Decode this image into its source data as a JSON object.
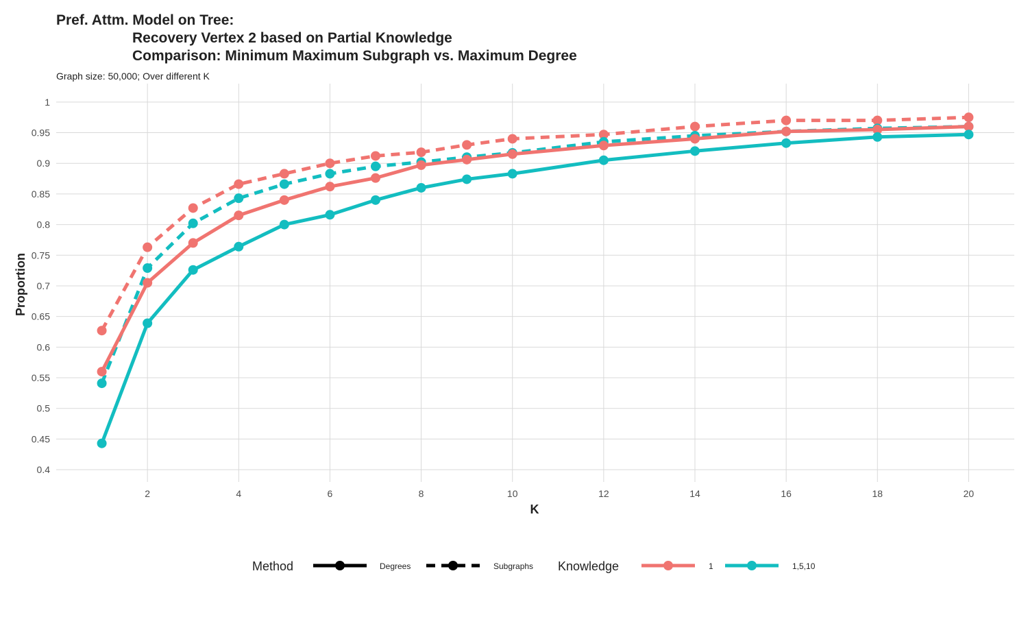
{
  "chart_data": {
    "type": "line",
    "title_lines": [
      "Pref. Attm. Model on Tree:",
      "Recovery Vertex 2 based on Partial Knowledge",
      "Comparison: Minimum Maximum Subgraph vs. Maximum Degree"
    ],
    "subtitle": "Graph size: 50,000; Over different K",
    "xlabel": "K",
    "ylabel": "Proportion",
    "xlim": [
      0,
      21
    ],
    "ylim": [
      0.38,
      1.03
    ],
    "x_ticks": [
      2,
      4,
      6,
      8,
      10,
      12,
      14,
      16,
      18,
      20
    ],
    "y_ticks": [
      0.4,
      0.45,
      0.5,
      0.55,
      0.6,
      0.65,
      0.7,
      0.75,
      0.8,
      0.85,
      0.9,
      0.95,
      1
    ],
    "y_tick_labels": [
      "0.4",
      "0.45",
      "0.5",
      "0.55",
      "0.6",
      "0.65",
      "0.7",
      "0.75",
      "0.8",
      "0.85",
      "0.9",
      "0.95",
      "1"
    ],
    "x": [
      1,
      2,
      3,
      4,
      5,
      6,
      7,
      8,
      9,
      10,
      12,
      14,
      16,
      18,
      20
    ],
    "grid": true,
    "legend_placement": "bottom",
    "colors": {
      "1": "#F07470",
      "1,5,10": "#13BDC0",
      "gridline": "#d9d9d9"
    },
    "series": [
      {
        "method": "Subgraphs",
        "knowledge": "1",
        "values": [
          0.627,
          0.763,
          0.827,
          0.866,
          0.883,
          0.9,
          0.912,
          0.918,
          0.93,
          0.94,
          0.947,
          0.96,
          0.97,
          0.97,
          0.975
        ]
      },
      {
        "method": "Subgraphs",
        "knowledge": "1,5,10",
        "values": [
          0.541,
          0.729,
          0.802,
          0.843,
          0.866,
          0.883,
          0.895,
          0.902,
          0.91,
          0.917,
          0.935,
          0.945,
          0.952,
          0.957,
          0.96
        ]
      },
      {
        "method": "Degrees",
        "knowledge": "1",
        "values": [
          0.56,
          0.705,
          0.77,
          0.815,
          0.84,
          0.862,
          0.876,
          0.897,
          0.906,
          0.915,
          0.929,
          0.94,
          0.952,
          0.955,
          0.96
        ]
      },
      {
        "method": "Degrees",
        "knowledge": "1,5,10",
        "values": [
          0.443,
          0.639,
          0.726,
          0.764,
          0.8,
          0.816,
          0.84,
          0.86,
          0.874,
          0.883,
          0.905,
          0.92,
          0.933,
          0.943,
          0.947
        ]
      }
    ],
    "legend": {
      "method_title": "Method",
      "method_items": [
        {
          "label": "Degrees",
          "linetype": "solid"
        },
        {
          "label": "Subgraphs",
          "linetype": "dashed"
        }
      ],
      "knowledge_title": "Knowledge",
      "knowledge_items": [
        {
          "label": "1",
          "color": "#F07470"
        },
        {
          "label": "1,5,10",
          "color": "#13BDC0"
        }
      ]
    }
  }
}
